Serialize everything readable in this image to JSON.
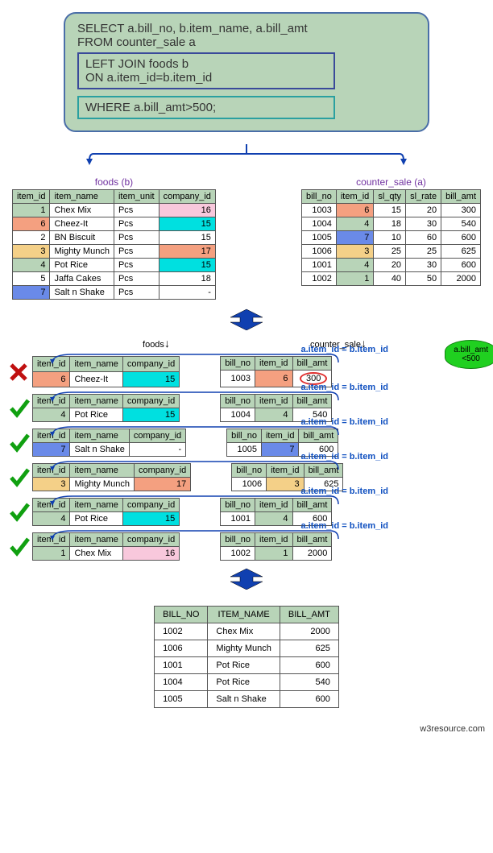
{
  "sql": {
    "line1": "SELECT a.bill_no, b.item_name, a.bill_amt",
    "line2": "FROM counter_sale a",
    "join": "LEFT JOIN foods b\nON a.item_id=b.item_id",
    "where": "WHERE  a.bill_amt>500;"
  },
  "foods": {
    "title": "foods (b)",
    "columns": [
      "item_id",
      "item_name",
      "item_unit",
      "company_id"
    ],
    "rows": [
      {
        "item_id": "1",
        "item_name": "Chex Mix",
        "item_unit": "Pcs",
        "company_id": "16",
        "id_bg": "c-green",
        "co_bg": "c-pink"
      },
      {
        "item_id": "6",
        "item_name": "Cheez-It",
        "item_unit": "Pcs",
        "company_id": "15",
        "id_bg": "c-salmon",
        "co_bg": "c-cyan"
      },
      {
        "item_id": "2",
        "item_name": "BN Biscuit",
        "item_unit": "Pcs",
        "company_id": "15",
        "id_bg": "",
        "co_bg": ""
      },
      {
        "item_id": "3",
        "item_name": "Mighty Munch",
        "item_unit": "Pcs",
        "company_id": "17",
        "id_bg": "c-tan",
        "co_bg": "c-salmon"
      },
      {
        "item_id": "4",
        "item_name": "Pot Rice",
        "item_unit": "Pcs",
        "company_id": "15",
        "id_bg": "c-green",
        "co_bg": "c-cyan"
      },
      {
        "item_id": "5",
        "item_name": "Jaffa Cakes",
        "item_unit": "Pcs",
        "company_id": "18",
        "id_bg": "",
        "co_bg": ""
      },
      {
        "item_id": "7",
        "item_name": "Salt n Shake",
        "item_unit": "Pcs",
        "company_id": "-",
        "id_bg": "c-blue",
        "co_bg": ""
      }
    ]
  },
  "counter_sale": {
    "title": "counter_sale (a)",
    "columns": [
      "bill_no",
      "item_id",
      "sl_qty",
      "sl_rate",
      "bill_amt"
    ],
    "rows": [
      {
        "bill_no": "1003",
        "item_id": "6",
        "sl_qty": "15",
        "sl_rate": "20",
        "bill_amt": "300",
        "id_bg": "c-salmon"
      },
      {
        "bill_no": "1004",
        "item_id": "4",
        "sl_qty": "18",
        "sl_rate": "30",
        "bill_amt": "540",
        "id_bg": "c-green"
      },
      {
        "bill_no": "1005",
        "item_id": "7",
        "sl_qty": "10",
        "sl_rate": "60",
        "bill_amt": "600",
        "id_bg": "c-blue"
      },
      {
        "bill_no": "1006",
        "item_id": "3",
        "sl_qty": "25",
        "sl_rate": "25",
        "bill_amt": "625",
        "id_bg": "c-tan"
      },
      {
        "bill_no": "1001",
        "item_id": "4",
        "sl_qty": "20",
        "sl_rate": "30",
        "bill_amt": "600",
        "id_bg": "c-green"
      },
      {
        "bill_no": "1002",
        "item_id": "1",
        "sl_qty": "40",
        "sl_rate": "50",
        "bill_amt": "2000",
        "id_bg": "c-green"
      }
    ]
  },
  "sections": {
    "foods_label": "foods",
    "counter_label": "counter_sale",
    "join_cond": "a.item_id = b.item_id",
    "callout_text": "a.bill_amt\n<500"
  },
  "matches": [
    {
      "ok": false,
      "food": {
        "item_id": "6",
        "item_name": "Cheez-It",
        "company_id": "15",
        "id_bg": "c-salmon",
        "co_bg": "c-cyan"
      },
      "sale": {
        "bill_no": "1003",
        "item_id": "6",
        "bill_amt": "300",
        "id_bg": "c-salmon",
        "amt_circle": true
      }
    },
    {
      "ok": true,
      "food": {
        "item_id": "4",
        "item_name": "Pot Rice",
        "company_id": "15",
        "id_bg": "c-green",
        "co_bg": "c-cyan"
      },
      "sale": {
        "bill_no": "1004",
        "item_id": "4",
        "bill_amt": "540",
        "id_bg": "c-green"
      }
    },
    {
      "ok": true,
      "food": {
        "item_id": "7",
        "item_name": "Salt n Shake",
        "company_id": "-",
        "id_bg": "c-blue",
        "co_bg": ""
      },
      "sale": {
        "bill_no": "1005",
        "item_id": "7",
        "bill_amt": "600",
        "id_bg": "c-blue"
      }
    },
    {
      "ok": true,
      "food": {
        "item_id": "3",
        "item_name": "Mighty Munch",
        "company_id": "17",
        "id_bg": "c-tan",
        "co_bg": "c-salmon"
      },
      "sale": {
        "bill_no": "1006",
        "item_id": "3",
        "bill_amt": "625",
        "id_bg": "c-tan"
      }
    },
    {
      "ok": true,
      "food": {
        "item_id": "4",
        "item_name": "Pot Rice",
        "company_id": "15",
        "id_bg": "c-green",
        "co_bg": "c-cyan"
      },
      "sale": {
        "bill_no": "1001",
        "item_id": "4",
        "bill_amt": "600",
        "id_bg": "c-green"
      }
    },
    {
      "ok": true,
      "food": {
        "item_id": "1",
        "item_name": "Chex Mix",
        "company_id": "16",
        "id_bg": "c-green",
        "co_bg": "c-pink"
      },
      "sale": {
        "bill_no": "1002",
        "item_id": "1",
        "bill_amt": "2000",
        "id_bg": "c-green"
      }
    }
  ],
  "result": {
    "columns": [
      "BILL_NO",
      "ITEM_NAME",
      "BILL_AMT"
    ],
    "rows": [
      [
        "1002",
        "Chex Mix",
        "2000"
      ],
      [
        "1006",
        "Mighty Munch",
        "625"
      ],
      [
        "1001",
        "Pot Rice",
        "600"
      ],
      [
        "1004",
        "Pot Rice",
        "540"
      ],
      [
        "1005",
        "Salt n Shake",
        "600"
      ]
    ]
  },
  "footer": "w3resource.com",
  "colors": {
    "arrow": "#1040b0",
    "header_bg": "#b8d4b8"
  }
}
